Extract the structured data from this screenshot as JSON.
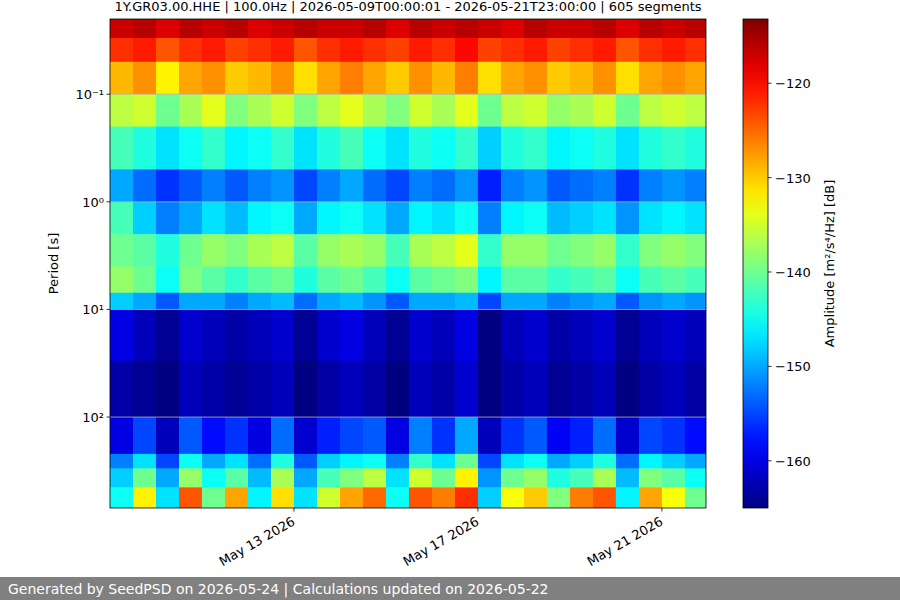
{
  "chart_data": {
    "type": "heatmap",
    "title": "1Y.GR03.00.HHE | 100.0Hz | 2026-05-09T00:00:01 - 2026-05-21T23:00:00 | 605 segments",
    "y_label": "Period [s]",
    "footer": "Generated by SeedPSD on 2026-05-24 | Calculations updated on 2026-05-22",
    "log": "y",
    "grid": true,
    "xlim": [
      "2026-05-09T00:00:01",
      "2026-05-21T23:00:00"
    ],
    "xticks": [
      {
        "value": "2026-05-13T00:00:00",
        "label": "May 13 2026"
      },
      {
        "value": "2026-05-17T00:00:00",
        "label": "May 17 2026"
      },
      {
        "value": "2026-05-21T00:00:00",
        "label": "May 21 2026"
      }
    ],
    "ylim": [
      700,
      0.02
    ],
    "yticks": [
      {
        "value": 0.1,
        "label": "10⁻¹"
      },
      {
        "value": 1,
        "label": "10⁰"
      },
      {
        "value": 10,
        "label": "10¹"
      },
      {
        "value": 100,
        "label": "10²"
      }
    ],
    "time_edges": [
      "2026-05-09T00:00:01",
      "2026-05-09T12:00:00",
      "2026-05-10T00:00:00",
      "2026-05-10T12:00:00",
      "2026-05-11T00:00:00",
      "2026-05-11T12:00:00",
      "2026-05-12T00:00:00",
      "2026-05-12T12:00:00",
      "2026-05-13T00:00:00",
      "2026-05-13T12:00:00",
      "2026-05-14T00:00:00",
      "2026-05-14T12:00:00",
      "2026-05-15T00:00:00",
      "2026-05-15T12:00:00",
      "2026-05-16T00:00:00",
      "2026-05-16T12:00:00",
      "2026-05-17T00:00:00",
      "2026-05-17T12:00:00",
      "2026-05-18T00:00:00",
      "2026-05-18T12:00:00",
      "2026-05-19T00:00:00",
      "2026-05-19T12:00:00",
      "2026-05-20T00:00:00",
      "2026-05-20T12:00:00",
      "2026-05-21T00:00:00",
      "2026-05-21T12:00:00",
      "2026-05-21T23:00:00"
    ],
    "period_edges": [
      0.02,
      0.03,
      0.05,
      0.1,
      0.2,
      0.5,
      1,
      2,
      4,
      7,
      10,
      30,
      100,
      220,
      300,
      450,
      700
    ],
    "cells": [
      [
        -117,
        -116,
        -118,
        -116,
        -117,
        -116,
        -118,
        -117,
        -116,
        -117,
        -117,
        -116,
        -118,
        -116,
        -117,
        -116,
        -117,
        -118,
        -116,
        -117,
        -117,
        -116,
        -118,
        -116,
        -117,
        -116
      ],
      [
        -122,
        -121,
        -124,
        -122,
        -121,
        -123,
        -122,
        -121,
        -124,
        -122,
        -121,
        -122,
        -123,
        -121,
        -122,
        -120,
        -123,
        -122,
        -121,
        -123,
        -122,
        -121,
        -124,
        -122,
        -121,
        -122
      ],
      [
        -129,
        -127,
        -132,
        -128,
        -127,
        -130,
        -129,
        -127,
        -131,
        -128,
        -126,
        -128,
        -130,
        -127,
        -129,
        -126,
        -131,
        -128,
        -127,
        -130,
        -129,
        -127,
        -131,
        -128,
        -127,
        -128
      ],
      [
        -136,
        -135,
        -140,
        -137,
        -134,
        -139,
        -137,
        -135,
        -139,
        -136,
        -134,
        -137,
        -139,
        -135,
        -137,
        -134,
        -140,
        -136,
        -135,
        -138,
        -137,
        -135,
        -140,
        -136,
        -135,
        -136
      ],
      [
        -142,
        -144,
        -147,
        -145,
        -143,
        -146,
        -145,
        -143,
        -147,
        -144,
        -142,
        -145,
        -147,
        -144,
        -145,
        -143,
        -148,
        -144,
        -143,
        -146,
        -145,
        -144,
        -147,
        -144,
        -143,
        -144
      ],
      [
        -150,
        -153,
        -156,
        -154,
        -152,
        -154,
        -152,
        -151,
        -155,
        -152,
        -150,
        -153,
        -155,
        -152,
        -153,
        -151,
        -157,
        -152,
        -151,
        -154,
        -153,
        -152,
        -156,
        -152,
        -151,
        -152
      ],
      [
        -142,
        -148,
        -152,
        -150,
        -147,
        -149,
        -146,
        -145,
        -150,
        -146,
        -145,
        -147,
        -150,
        -146,
        -147,
        -145,
        -152,
        -146,
        -145,
        -149,
        -148,
        -147,
        -151,
        -147,
        -146,
        -147
      ],
      [
        -140,
        -141,
        -144,
        -140,
        -138,
        -139,
        -137,
        -136,
        -141,
        -138,
        -137,
        -138,
        -142,
        -137,
        -136,
        -134,
        -143,
        -138,
        -138,
        -140,
        -139,
        -138,
        -143,
        -139,
        -138,
        -139
      ],
      [
        -138,
        -140,
        -145,
        -139,
        -141,
        -143,
        -141,
        -140,
        -144,
        -141,
        -140,
        -142,
        -145,
        -141,
        -140,
        -139,
        -146,
        -141,
        -141,
        -143,
        -142,
        -141,
        -145,
        -142,
        -141,
        -142
      ],
      [
        -148,
        -150,
        -154,
        -150,
        -150,
        -152,
        -150,
        -149,
        -153,
        -150,
        -149,
        -151,
        -154,
        -150,
        -150,
        -149,
        -155,
        -150,
        -150,
        -152,
        -151,
        -150,
        -154,
        -151,
        -150,
        -151
      ],
      [
        -160,
        -162,
        -164,
        -161,
        -162,
        -163,
        -162,
        -161,
        -164,
        -161,
        -160,
        -162,
        -164,
        -161,
        -162,
        -160,
        -165,
        -162,
        -161,
        -163,
        -162,
        -161,
        -164,
        -162,
        -161,
        -162
      ],
      [
        -163,
        -164,
        -165,
        -162,
        -163,
        -164,
        -163,
        -162,
        -165,
        -163,
        -162,
        -163,
        -165,
        -162,
        -163,
        -161,
        -165,
        -163,
        -162,
        -164,
        -163,
        -162,
        -165,
        -163,
        -162,
        -163
      ],
      [
        -160,
        -155,
        -162,
        -154,
        -158,
        -156,
        -160,
        -153,
        -161,
        -157,
        -155,
        -154,
        -160,
        -152,
        -156,
        -150,
        -162,
        -156,
        -154,
        -159,
        -157,
        -153,
        -161,
        -155,
        -156,
        -158
      ],
      [
        -152,
        -147,
        -155,
        -145,
        -150,
        -147,
        -153,
        -144,
        -154,
        -148,
        -146,
        -145,
        -152,
        -143,
        -147,
        -140,
        -155,
        -147,
        -145,
        -150,
        -148,
        -144,
        -153,
        -146,
        -148,
        -150
      ],
      [
        -148,
        -140,
        -150,
        -138,
        -145,
        -141,
        -149,
        -137,
        -150,
        -142,
        -139,
        -136,
        -147,
        -135,
        -140,
        -132,
        -151,
        -140,
        -138,
        -144,
        -142,
        -137,
        -149,
        -139,
        -141,
        -145
      ],
      [
        -145,
        -132,
        -147,
        -124,
        -140,
        -128,
        -146,
        -131,
        -147,
        -135,
        -128,
        -125,
        -145,
        -124,
        -126,
        -122,
        -148,
        -133,
        -130,
        -139,
        -126,
        -124,
        -146,
        -128,
        -133,
        -140
      ]
    ],
    "colorbar": {
      "label": "Amplitude [m²/s⁴/Hz] [dB]",
      "range": [
        -165,
        -113.2
      ],
      "ticks": [
        {
          "value": -120,
          "label": "−120"
        },
        {
          "value": -130,
          "label": "−130"
        },
        {
          "value": -140,
          "label": "−140"
        },
        {
          "value": -150,
          "label": "−150"
        },
        {
          "value": -160,
          "label": "−160"
        }
      ]
    }
  }
}
